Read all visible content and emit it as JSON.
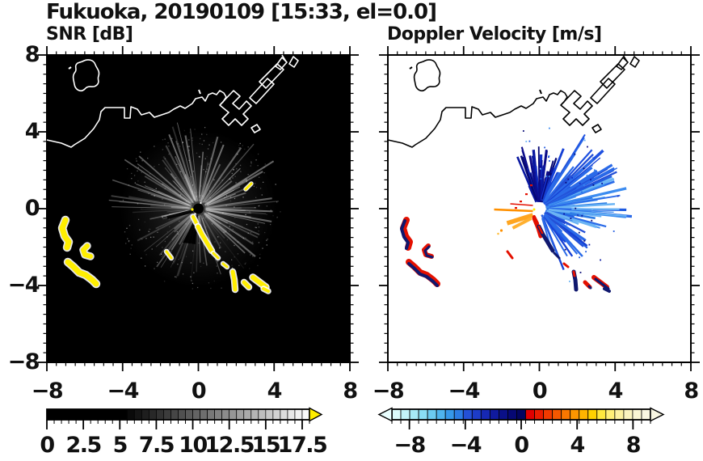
{
  "header": {
    "title": "Fukuoka, 20190109 [15:33, el=0.0]"
  },
  "panels": {
    "snr": {
      "title": "SNR [dB]"
    },
    "vel": {
      "title": "Doppler Velocity [m/s]"
    }
  },
  "axes": {
    "range_km": {
      "min": -8,
      "max": 8
    },
    "major_step": 4,
    "minor_step": 0.5,
    "x_tick_labels": [
      "−8",
      "−4",
      "0",
      "4",
      "8"
    ],
    "x_tick_values": [
      -8,
      -4,
      0,
      4,
      8
    ],
    "y_tick_labels": [
      "8",
      "4",
      "0",
      "−4",
      "−8"
    ],
    "y_tick_values": [
      8,
      4,
      0,
      -4,
      -8
    ]
  },
  "colorbars": {
    "snr": {
      "min": 0,
      "max": 18,
      "segment_step": 0.5,
      "black_until": 5,
      "tick_values": [
        0,
        2.5,
        5,
        7.5,
        10,
        12.5,
        15,
        17.5
      ],
      "tick_labels": [
        "0",
        "2.5",
        "5",
        "7.5",
        "10",
        "12.5",
        "15",
        "17.5"
      ],
      "over_arrow_color": "#ffee00"
    },
    "vel": {
      "min": -9.25,
      "max": 9.25,
      "tick_values": [
        -8,
        -4,
        0,
        4,
        8
      ],
      "tick_labels": [
        "−8",
        "−4",
        "0",
        "4",
        "8"
      ],
      "blues": [
        "#dbfbfb",
        "#c3f3f8",
        "#a7eaf6",
        "#8adef4",
        "#6ccbf1",
        "#4fb4ee",
        "#3698ea",
        "#2c7ce4",
        "#2450d6",
        "#1d3cc8",
        "#1628b4",
        "#101a9e",
        "#0a1088",
        "#060874",
        "#030460"
      ],
      "warms": [
        "#e00000",
        "#ea1c00",
        "#f13a00",
        "#f65800",
        "#fa7700",
        "#fc9600",
        "#feb400",
        "#ffd100",
        "#ffe83e",
        "#ffef77",
        "#fdf2a0",
        "#fbf4bf",
        "#faf6d4",
        "#f9f7e2"
      ],
      "under_arrow_color": "#e8fdfd",
      "over_arrow_color": "#f9f7e2"
    }
  },
  "colors": {
    "map_bg_snr": "#000000",
    "map_bg_vel": "#ffffff",
    "coast_snr": "#ffffff",
    "coast_vel": "#000000",
    "snr_blob": "#ffee00",
    "blob_fringe": "#ffffff",
    "vel_pos_red": "#e41000",
    "vel_neg_navy": "#10186e",
    "vel_orange": "#ff9000",
    "frame": "#000000"
  },
  "chart_data": [
    {
      "type": "heatmap",
      "title": "SNR [dB]",
      "site": "Fukuoka",
      "datetime_label": "20190109 [15:33, el=0.0]",
      "xlim": [
        -8,
        8
      ],
      "ylim": [
        -8,
        8
      ],
      "x_ticks": [
        -8,
        -4,
        0,
        4,
        8
      ],
      "y_ticks": [
        -8,
        -4,
        0,
        4,
        8
      ],
      "colorbar": {
        "ticks": [
          0,
          2.5,
          5,
          7.5,
          10,
          12.5,
          15,
          17.5
        ],
        "scale": "black (0 dB) to white (17.5 dB) grayscale with yellow overflow arrow"
      },
      "features": [
        {
          "name": "radar-origin",
          "x_km": 0,
          "y_km": 0
        },
        {
          "name": "speckle-clutter-fan",
          "desc": "grey speckled rays radiating to ~4 km around the origin, brightest toward N, NE and E"
        },
        {
          "name": "high-snr-arc-west",
          "x_km": -7.0,
          "y_km": -1.2,
          "desc": "yellow banana-shaped arc"
        },
        {
          "name": "high-snr-hook-west",
          "x_km": -5.8,
          "y_km": -2.4,
          "desc": "small yellow hook"
        },
        {
          "name": "high-snr-band-southwest",
          "x_km": -6.2,
          "y_km": -3.4,
          "desc": "yellow diagonal band"
        },
        {
          "name": "high-snr-chain-southeast",
          "desc": "broken yellow chain from (0,-1) km to (3.7,-4.3) km"
        },
        {
          "name": "small-echo-west",
          "x_km": -1.6,
          "y_km": -2.4
        },
        {
          "name": "small-echo-northeast",
          "x_km": 2.6,
          "y_km": 1.2
        },
        {
          "name": "coastline",
          "desc": "white coastline across the north with island near (-6,6) km and harbour piers near (2..4, 4..7) km"
        }
      ]
    },
    {
      "type": "heatmap",
      "title": "Doppler Velocity [m/s]",
      "site": "Fukuoka",
      "datetime_label": "20190109 [15:33, el=0.0]",
      "xlim": [
        -8,
        8
      ],
      "ylim": [
        -8,
        8
      ],
      "x_ticks": [
        -8,
        -4,
        0,
        4,
        8
      ],
      "y_ticks": [
        -8,
        -4,
        0,
        4,
        8
      ],
      "colorbar": {
        "ticks": [
          -8,
          -4,
          0,
          4,
          8
        ],
        "scale": "pale cyan to dark navy for negative velocities, red to orange to pale yellow for positive"
      },
      "features": [
        {
          "name": "radar-origin",
          "x_km": 0,
          "y_km": 0
        },
        {
          "name": "negative-velocity-fan",
          "desc": "blue spikes (≈ −2 to −9 m/s) fanning from origin toward N through E, ~1-3 km long"
        },
        {
          "name": "positive-velocity-rays",
          "desc": "orange rays (≈ +4 to +7 m/s) pointing W/SW from origin"
        },
        {
          "name": "positive-streak-below-origin",
          "desc": "red streak just south of origin"
        },
        {
          "name": "mixed-velocity-arcs-southwest",
          "desc": "paired red/navy arcs near (-7,-1) to (-5,-4) km"
        },
        {
          "name": "mixed-velocity-chain-southeast",
          "desc": "red/navy chain from (0,-1) km to (3.7,-4.3) km"
        },
        {
          "name": "coastline",
          "desc": "black coastline, same geography as SNR panel"
        }
      ]
    }
  ]
}
